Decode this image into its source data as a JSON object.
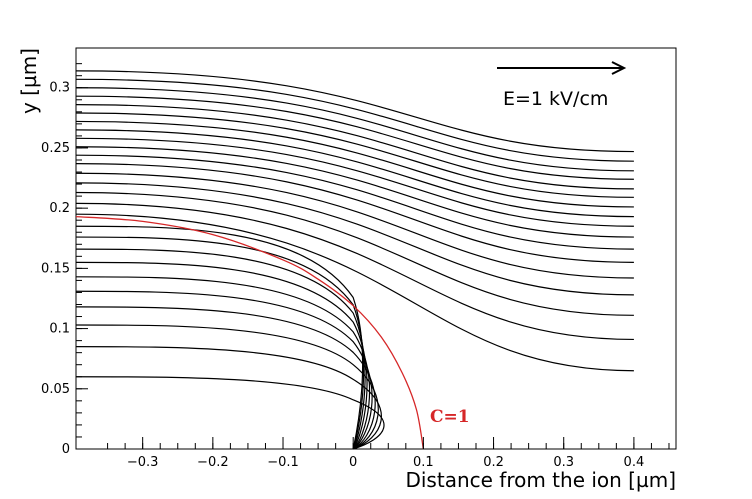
{
  "chart_data": {
    "type": "line",
    "title": "",
    "xlabel": "Distance from the ion [µm]",
    "ylabel": "y [µm]",
    "xlim": [
      -0.395,
      0.46
    ],
    "ylim": [
      0,
      0.333
    ],
    "xticks": [
      "−0.3",
      "−0.2",
      "−0.1",
      "0",
      "0.1",
      "0.2",
      "0.3",
      "0.4"
    ],
    "xtick_values": [
      -0.3,
      -0.2,
      -0.1,
      0,
      0.1,
      0.2,
      0.3,
      0.4
    ],
    "yticks": [
      "0",
      "0.05",
      "0.1",
      "0.15",
      "0.2",
      "0.25",
      "0.3"
    ],
    "ytick_values": [
      0,
      0.05,
      0.1,
      0.15,
      0.2,
      0.25,
      0.3
    ],
    "grid": false,
    "annotations": {
      "field_label": "E=1 kV/cm",
      "curve_label": "C=1"
    },
    "colors": {
      "field_lines": "#000000",
      "critical_curve": "#d62728"
    },
    "captured_field_lines": {
      "start_x": -0.395,
      "end_x": 0,
      "start_y": [
        0.06,
        0.085,
        0.103,
        0.118,
        0.131,
        0.143,
        0.155,
        0.166,
        0.176,
        0.185
      ],
      "max_x": [
        0.045,
        0.04,
        0.034,
        0.028,
        0.022,
        0.017,
        0.012,
        0.008,
        0.005,
        0.003
      ]
    },
    "passing_field_lines": {
      "x": [
        -0.395,
        0.4
      ],
      "pairs": [
        [
          0.195,
          0.065
        ],
        [
          0.204,
          0.091
        ],
        [
          0.213,
          0.111
        ],
        [
          0.221,
          0.128
        ],
        [
          0.229,
          0.142
        ],
        [
          0.237,
          0.155
        ],
        [
          0.244,
          0.166
        ],
        [
          0.251,
          0.176
        ],
        [
          0.258,
          0.185
        ],
        [
          0.265,
          0.193
        ],
        [
          0.272,
          0.201
        ],
        [
          0.279,
          0.209
        ],
        [
          0.286,
          0.216
        ],
        [
          0.293,
          0.224
        ],
        [
          0.3,
          0.231
        ],
        [
          0.307,
          0.239
        ],
        [
          0.314,
          0.247
        ]
      ]
    },
    "critical_curve": {
      "name": "C=1",
      "x": [
        -0.395,
        -0.3,
        -0.2,
        -0.1,
        -0.05,
        0,
        0.04,
        0.07,
        0.09,
        0.1
      ],
      "y": [
        0.193,
        0.189,
        0.178,
        0.157,
        0.141,
        0.119,
        0.093,
        0.063,
        0.033,
        0
      ]
    }
  }
}
